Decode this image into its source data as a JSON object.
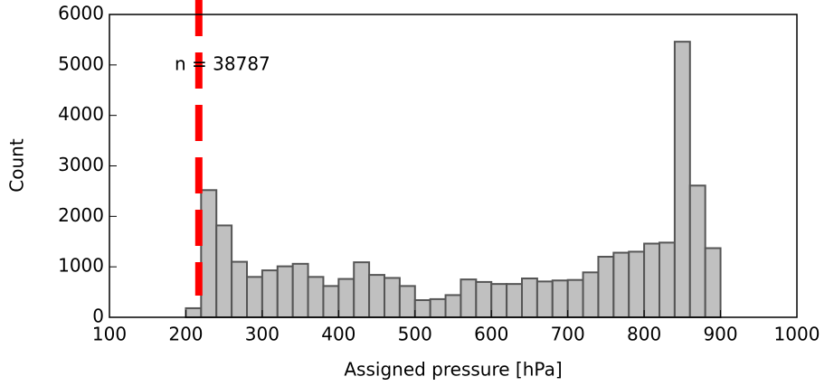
{
  "chart_data": {
    "type": "histogram",
    "xlabel": "Assigned pressure [hPa]",
    "ylabel": "Count",
    "annotation": "n = 38787",
    "bins": [
      200,
      220,
      240,
      260,
      280,
      300,
      320,
      340,
      360,
      380,
      400,
      420,
      440,
      460,
      480,
      500,
      520,
      540,
      560,
      580,
      600,
      620,
      640,
      660,
      680,
      700,
      720,
      740,
      760,
      780,
      800,
      820,
      840,
      860,
      880,
      900
    ],
    "values": [
      180,
      2520,
      1820,
      1100,
      800,
      930,
      1010,
      1060,
      800,
      620,
      760,
      1090,
      840,
      780,
      620,
      340,
      360,
      440,
      750,
      700,
      660,
      660,
      770,
      710,
      730,
      740,
      890,
      1200,
      1280,
      1300,
      1460,
      1480,
      5460,
      2610,
      1370
    ],
    "color": "#c0c0c0",
    "edgecolor": "#555555",
    "xlim": [
      100,
      1000
    ],
    "xticks": [
      100,
      200,
      300,
      400,
      500,
      600,
      700,
      800,
      900,
      1000
    ],
    "ylim": [
      0,
      6000
    ],
    "yticks": [
      0,
      1000,
      2000,
      3000,
      4000,
      5000,
      6000
    ],
    "vline": {
      "x": 217,
      "color": "#ff0000"
    }
  }
}
